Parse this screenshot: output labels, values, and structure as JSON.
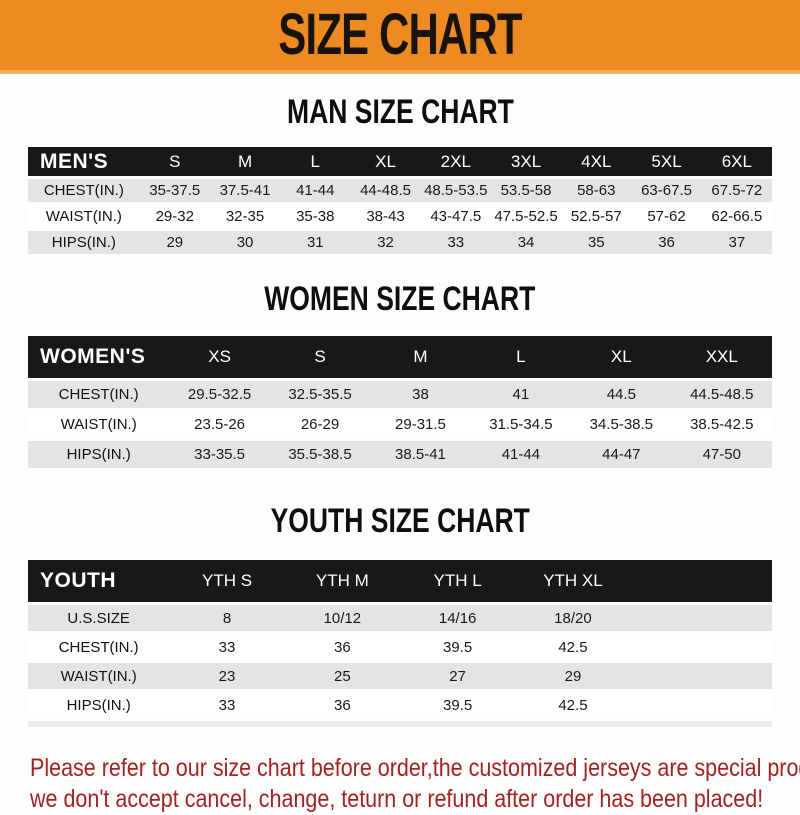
{
  "banner": {
    "title": "SIZE CHART"
  },
  "colors": {
    "banner_bg": "#EE8A22",
    "banner_edge": "#F2B05E",
    "table_band_bg": "#181818",
    "row_alt_bg": "#E4E4E4",
    "footer_text": "#A32322"
  },
  "sections": [
    {
      "id": "men",
      "heading": "MAN SIZE CHART",
      "table": {
        "header": [
          "MEN'S",
          "S",
          "M",
          "L",
          "XL",
          "2XL",
          "3XL",
          "4XL",
          "5XL",
          "6XL"
        ],
        "rows": [
          [
            "CHEST(IN.)",
            "35-37.5",
            "37.5-41",
            "41-44",
            "44-48.5",
            "48.5-53.5",
            "53.5-58",
            "58-63",
            "63-67.5",
            "67.5-72"
          ],
          [
            "WAIST(IN.)",
            "29-32",
            "32-35",
            "35-38",
            "38-43",
            "43-47.5",
            "47.5-52.5",
            "52.5-57",
            "57-62",
            "62-66.5"
          ],
          [
            "HIPS(IN.)",
            "29",
            "30",
            "31",
            "32",
            "33",
            "34",
            "35",
            "36",
            "37"
          ]
        ]
      }
    },
    {
      "id": "women",
      "heading": "WOMEN SIZE CHART",
      "table": {
        "header": [
          "WOMEN'S",
          "XS",
          "S",
          "M",
          "L",
          "XL",
          "XXL"
        ],
        "rows": [
          [
            "CHEST(IN.)",
            "29.5-32.5",
            "32.5-35.5",
            "38",
            "41",
            "44.5",
            "44.5-48.5"
          ],
          [
            "WAIST(IN.)",
            "23.5-26",
            "26-29",
            "29-31.5",
            "31.5-34.5",
            "34.5-38.5",
            "38.5-42.5"
          ],
          [
            "HIPS(IN.)",
            "33-35.5",
            "35.5-38.5",
            "38.5-41",
            "41-44",
            "44-47",
            "47-50"
          ]
        ]
      }
    },
    {
      "id": "youth",
      "heading": "YOUTH SIZE CHART",
      "table": {
        "header": [
          "YOUTH",
          "YTH S",
          "YTH M",
          "YTH L",
          "YTH XL",
          ""
        ],
        "rows": [
          [
            "U.S.SIZE",
            "8",
            "10/12",
            "14/16",
            "18/20",
            ""
          ],
          [
            "CHEST(IN.)",
            "33",
            "36",
            "39.5",
            "42.5",
            ""
          ],
          [
            "WAIST(IN.)",
            "23",
            "25",
            "27",
            "29",
            ""
          ],
          [
            "HIPS(IN.)",
            "33",
            "36",
            "39.5",
            "42.5",
            ""
          ]
        ]
      }
    }
  ],
  "footer": {
    "line1": "Please refer to our size chart before order,the customized jerseys are special products,",
    "line2": "we don't accept cancel, change, teturn or refund after order has been placed!"
  }
}
